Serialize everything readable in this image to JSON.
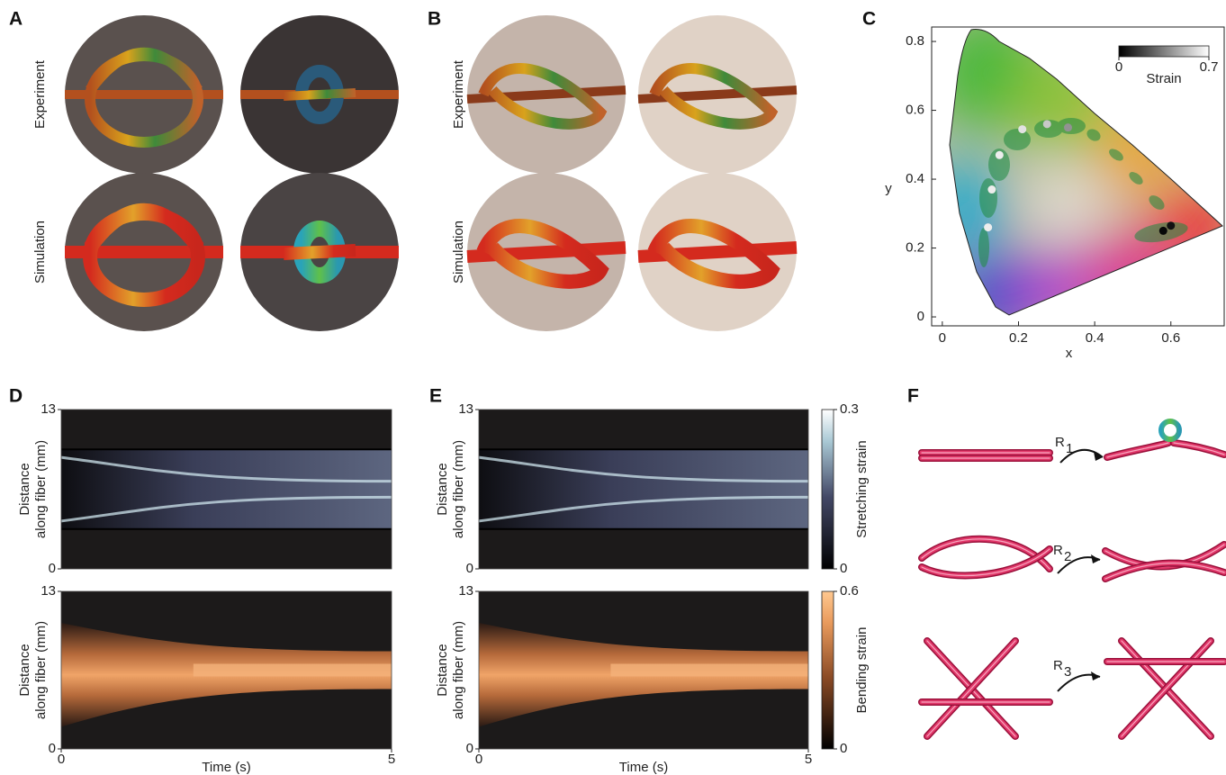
{
  "A": {
    "label": "A",
    "row_labels": [
      "Experiment",
      "Simulation"
    ]
  },
  "B": {
    "label": "B",
    "row_labels": [
      "Experiment",
      "Simulation"
    ]
  },
  "C": {
    "label": "C",
    "x_label": "x",
    "y_label": "y",
    "xlim": [
      -0.028,
      0.74
    ],
    "ylim": [
      -0.026,
      0.842
    ],
    "xticks": [
      0,
      0.2,
      0.4,
      0.6
    ],
    "yticks": [
      0,
      0.2,
      0.4,
      0.6,
      0.8
    ],
    "points": {
      "x": [
        0.12,
        0.13,
        0.15,
        0.21,
        0.275,
        0.33,
        0.58,
        0.6
      ],
      "y": [
        0.26,
        0.37,
        0.47,
        0.545,
        0.56,
        0.55,
        0.25,
        0.265
      ],
      "strain": [
        0.05,
        0.05,
        0.05,
        0.08,
        0.15,
        0.3,
        0.68,
        0.65
      ]
    },
    "colorbar": {
      "label": "Strain",
      "lim": [
        0,
        0.7
      ],
      "ticks": [
        0,
        0.7
      ]
    }
  },
  "D": {
    "label": "D",
    "y_label": [
      "Distance",
      "along fiber (mm)"
    ],
    "x_label": "Time (s)",
    "xlim": [
      0,
      5
    ],
    "xticks": [
      0,
      5
    ],
    "ylim": [
      0,
      13
    ],
    "yticks": [
      0,
      13
    ]
  },
  "E": {
    "label": "E",
    "y_label": [
      "Distance",
      "along fiber (mm)"
    ],
    "x_label": "Time (s)",
    "xlim": [
      0,
      5
    ],
    "xticks": [
      0,
      5
    ],
    "ylim": [
      0,
      13
    ],
    "yticks": [
      0,
      13
    ],
    "colorbars": [
      {
        "label": "Stretching strain",
        "lim": [
          0,
          0.3
        ],
        "ticks": [
          0,
          0.3
        ]
      },
      {
        "label": "Bending strain",
        "lim": [
          0,
          0.6
        ],
        "ticks": [
          0,
          0.6
        ]
      }
    ]
  },
  "F": {
    "label": "F",
    "moves": [
      {
        "name": "R",
        "sub": "1"
      },
      {
        "name": "R",
        "sub": "2"
      },
      {
        "name": "R",
        "sub": "3"
      }
    ]
  }
}
